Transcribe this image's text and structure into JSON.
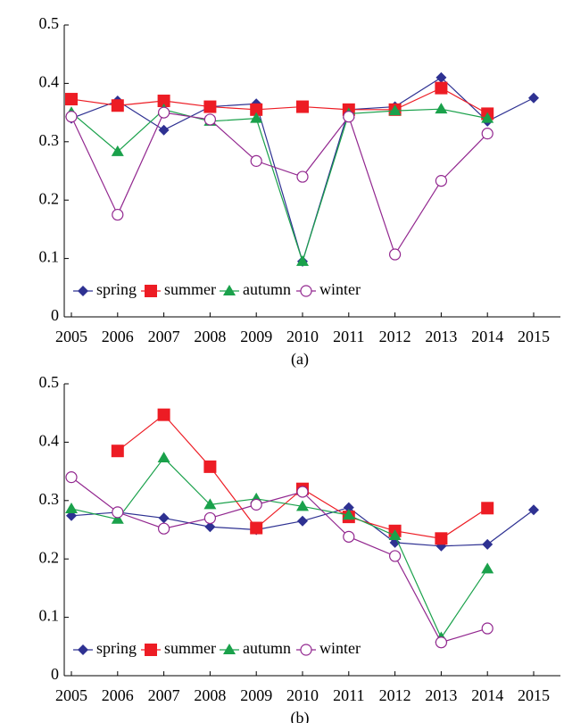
{
  "chart_data": [
    {
      "type": "line",
      "caption": "(a)",
      "categories": [
        "2005",
        "2006",
        "2007",
        "2008",
        "2009",
        "2010",
        "2011",
        "2012",
        "2013",
        "2014",
        "2015"
      ],
      "ylim": [
        0,
        0.5
      ],
      "yticks": [
        0,
        0.1,
        0.2,
        0.3,
        0.4,
        0.5
      ],
      "legend": "lower-left",
      "series": [
        {
          "name": "spring",
          "color": "#2e3192",
          "marker": "diamond",
          "values": [
            0.34,
            0.37,
            0.32,
            0.36,
            0.365,
            0.095,
            0.355,
            0.36,
            0.41,
            0.335,
            0.375
          ]
        },
        {
          "name": "summer",
          "color": "#ed1c24",
          "marker": "square",
          "values": [
            0.373,
            0.362,
            0.37,
            0.36,
            0.355,
            0.36,
            0.355,
            0.355,
            0.392,
            0.348,
            null
          ]
        },
        {
          "name": "autumn",
          "color": "#1aa14b",
          "marker": "triangle",
          "values": [
            0.35,
            0.283,
            0.355,
            0.335,
            0.34,
            0.095,
            0.348,
            0.353,
            0.356,
            0.34,
            null
          ]
        },
        {
          "name": "winter",
          "color": "#92278f",
          "marker": "circle",
          "values": [
            0.343,
            0.175,
            0.35,
            0.338,
            0.267,
            0.24,
            0.343,
            0.107,
            0.233,
            0.314,
            null
          ]
        }
      ]
    },
    {
      "type": "line",
      "caption": "(b)",
      "categories": [
        "2005",
        "2006",
        "2007",
        "2008",
        "2009",
        "2010",
        "2011",
        "2012",
        "2013",
        "2014",
        "2015"
      ],
      "ylim": [
        0,
        0.5
      ],
      "yticks": [
        0,
        0.1,
        0.2,
        0.3,
        0.4,
        0.5
      ],
      "legend": "lower-left",
      "series": [
        {
          "name": "spring",
          "color": "#2e3192",
          "marker": "diamond",
          "values": [
            0.274,
            0.28,
            0.27,
            0.255,
            0.25,
            0.265,
            0.288,
            0.228,
            0.222,
            0.225,
            0.284
          ]
        },
        {
          "name": "summer",
          "color": "#ed1c24",
          "marker": "square",
          "values": [
            null,
            0.385,
            0.447,
            0.358,
            0.253,
            0.32,
            0.272,
            0.248,
            0.235,
            0.287,
            null
          ]
        },
        {
          "name": "autumn",
          "color": "#1aa14b",
          "marker": "triangle",
          "values": [
            0.286,
            0.268,
            0.373,
            0.293,
            0.303,
            0.29,
            0.275,
            0.24,
            0.065,
            0.183,
            null
          ]
        },
        {
          "name": "winter",
          "color": "#92278f",
          "marker": "circle",
          "values": [
            0.34,
            0.28,
            0.252,
            0.27,
            0.293,
            0.315,
            0.238,
            0.205,
            0.057,
            0.081,
            null
          ]
        }
      ]
    }
  ]
}
